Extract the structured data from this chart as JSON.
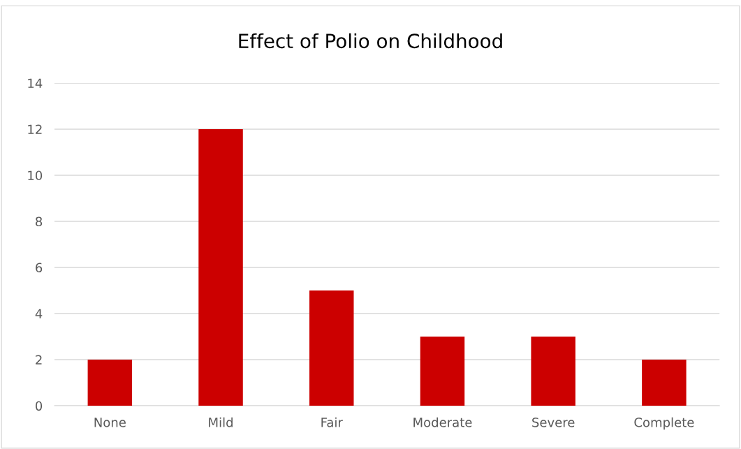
{
  "chart_data": {
    "type": "bar",
    "title": "Effect of Polio on Childhood",
    "categories": [
      "None",
      "Mild",
      "Fair",
      "Moderate",
      "Severe",
      "Complete"
    ],
    "values": [
      2,
      12,
      5,
      3,
      3,
      2
    ],
    "color": "#cc0000",
    "ylim": [
      0,
      14
    ],
    "yticks": [
      0,
      2,
      4,
      6,
      8,
      10,
      12,
      14
    ],
    "grid": "y",
    "legend": false
  }
}
